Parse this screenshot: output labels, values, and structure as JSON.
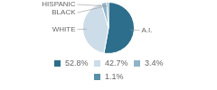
{
  "chart_data": {
    "type": "pie",
    "categories": [
      "A.I.",
      "WHITE",
      "BLACK",
      "HISPANIC"
    ],
    "values": [
      52.8,
      42.7,
      3.4,
      1.1
    ],
    "value_labels": [
      "52.8%",
      "42.7%",
      "3.4%",
      "1.1%"
    ],
    "colors": [
      "#2d6e8c",
      "#ccdce8",
      "#8fb4c8",
      "#5a8fa8"
    ],
    "legend": "bottom"
  }
}
